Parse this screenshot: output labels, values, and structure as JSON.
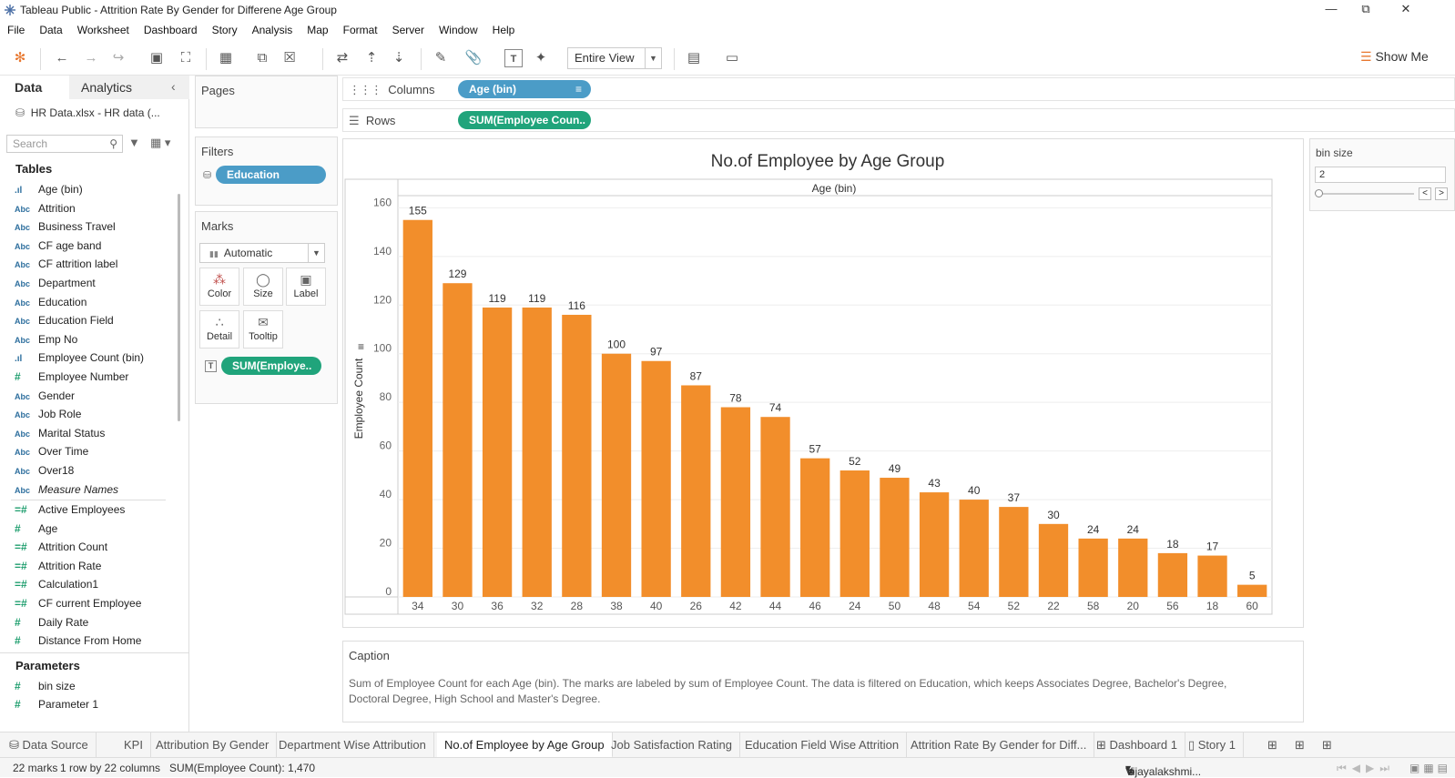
{
  "window": {
    "title": "Tableau Public - Attrition Rate By Gender for Differene Age Group"
  },
  "menu": [
    "File",
    "Data",
    "Worksheet",
    "Dashboard",
    "Story",
    "Analysis",
    "Map",
    "Format",
    "Server",
    "Window",
    "Help"
  ],
  "toolbar": {
    "view_select": "Entire View",
    "show_me": "Show Me"
  },
  "left_pane": {
    "tab_data": "Data",
    "tab_analytics": "Analytics",
    "datasource": "HR Data.xlsx - HR data (...",
    "search_placeholder": "Search",
    "tables_heading": "Tables",
    "dimensions": [
      {
        "type": "bin",
        "name": "Age (bin)"
      },
      {
        "type": "abc",
        "name": "Attrition"
      },
      {
        "type": "abc",
        "name": "Business Travel"
      },
      {
        "type": "abc",
        "name": "CF age band"
      },
      {
        "type": "abc",
        "name": "CF attrition label"
      },
      {
        "type": "abc",
        "name": "Department"
      },
      {
        "type": "abc",
        "name": "Education"
      },
      {
        "type": "abc",
        "name": "Education Field"
      },
      {
        "type": "abc",
        "name": "Emp No"
      },
      {
        "type": "bin",
        "name": "Employee Count (bin)"
      },
      {
        "type": "num",
        "name": "Employee Number"
      },
      {
        "type": "abc",
        "name": "Gender"
      },
      {
        "type": "abc",
        "name": "Job Role"
      },
      {
        "type": "abc",
        "name": "Marital Status"
      },
      {
        "type": "abc",
        "name": "Over Time"
      },
      {
        "type": "abc",
        "name": "Over18"
      },
      {
        "type": "abc",
        "name": "Measure Names"
      }
    ],
    "measures": [
      {
        "type": "calc",
        "name": "Active Employees"
      },
      {
        "type": "num",
        "name": "Age"
      },
      {
        "type": "calc",
        "name": "Attrition Count"
      },
      {
        "type": "calc",
        "name": "Attrition Rate"
      },
      {
        "type": "calc",
        "name": "Calculation1"
      },
      {
        "type": "calc",
        "name": "CF current Employee"
      },
      {
        "type": "num",
        "name": "Daily Rate"
      },
      {
        "type": "num",
        "name": "Distance From Home"
      }
    ],
    "parameters_heading": "Parameters",
    "parameters": [
      "bin size",
      "Parameter 1"
    ]
  },
  "shelves": {
    "pages_label": "Pages",
    "filters_label": "Filters",
    "filter_pill": "Education",
    "marks_label": "Marks",
    "marks_type": "Automatic",
    "mark_buttons": {
      "color": "Color",
      "size": "Size",
      "label": "Label",
      "detail": "Detail",
      "tooltip": "Tooltip"
    },
    "marks_pill": "SUM(Employe..",
    "columns_label": "Columns",
    "columns_pill": "Age (bin)",
    "rows_label": "Rows",
    "rows_pill": "SUM(Employee Coun.."
  },
  "parameter_card": {
    "title": "bin size",
    "value": "2"
  },
  "caption": {
    "label": "Caption",
    "text": "Sum of Employee Count for each Age (bin).  The marks are labeled by sum of Employee Count. The data is filtered on Education, which keeps Associates Degree, Bachelor's Degree, Doctoral Degree, High School and Master's Degree."
  },
  "chart_data": {
    "type": "bar",
    "title": "No.of Employee by Age Group",
    "xlabel": "Age (bin)",
    "ylabel": "Employee Count",
    "categories": [
      "34",
      "30",
      "36",
      "32",
      "28",
      "38",
      "40",
      "26",
      "42",
      "44",
      "46",
      "24",
      "50",
      "48",
      "54",
      "52",
      "22",
      "58",
      "20",
      "56",
      "18",
      "60"
    ],
    "values": [
      155,
      129,
      119,
      119,
      116,
      100,
      97,
      87,
      78,
      74,
      57,
      52,
      49,
      43,
      40,
      37,
      30,
      24,
      24,
      18,
      17,
      5
    ],
    "yticks": [
      0,
      20,
      40,
      60,
      80,
      100,
      120,
      140,
      160
    ],
    "ylim": [
      0,
      165
    ],
    "bar_color": "#f28e2b",
    "grid": true
  },
  "sheet_tabs": [
    {
      "label": "Data Source",
      "active": false
    },
    {
      "label": "KPI",
      "active": false
    },
    {
      "label": "Attribution By Gender",
      "active": false
    },
    {
      "label": "Department Wise Attribution",
      "active": false
    },
    {
      "label": "No.of Employee by Age Group",
      "active": true
    },
    {
      "label": "Job Satisfaction Rating",
      "active": false
    },
    {
      "label": "Education Field Wise Attrition",
      "active": false
    },
    {
      "label": "Attrition Rate By Gender for Diff...",
      "active": false
    },
    {
      "label": "Dashboard 1",
      "active": false
    },
    {
      "label": "Story 1",
      "active": false
    }
  ],
  "status": {
    "marks": "22 marks",
    "dims": "1 row by 22 columns",
    "sum": "SUM(Employee Count): 1,470",
    "user": "Vijayalakshmi..."
  }
}
